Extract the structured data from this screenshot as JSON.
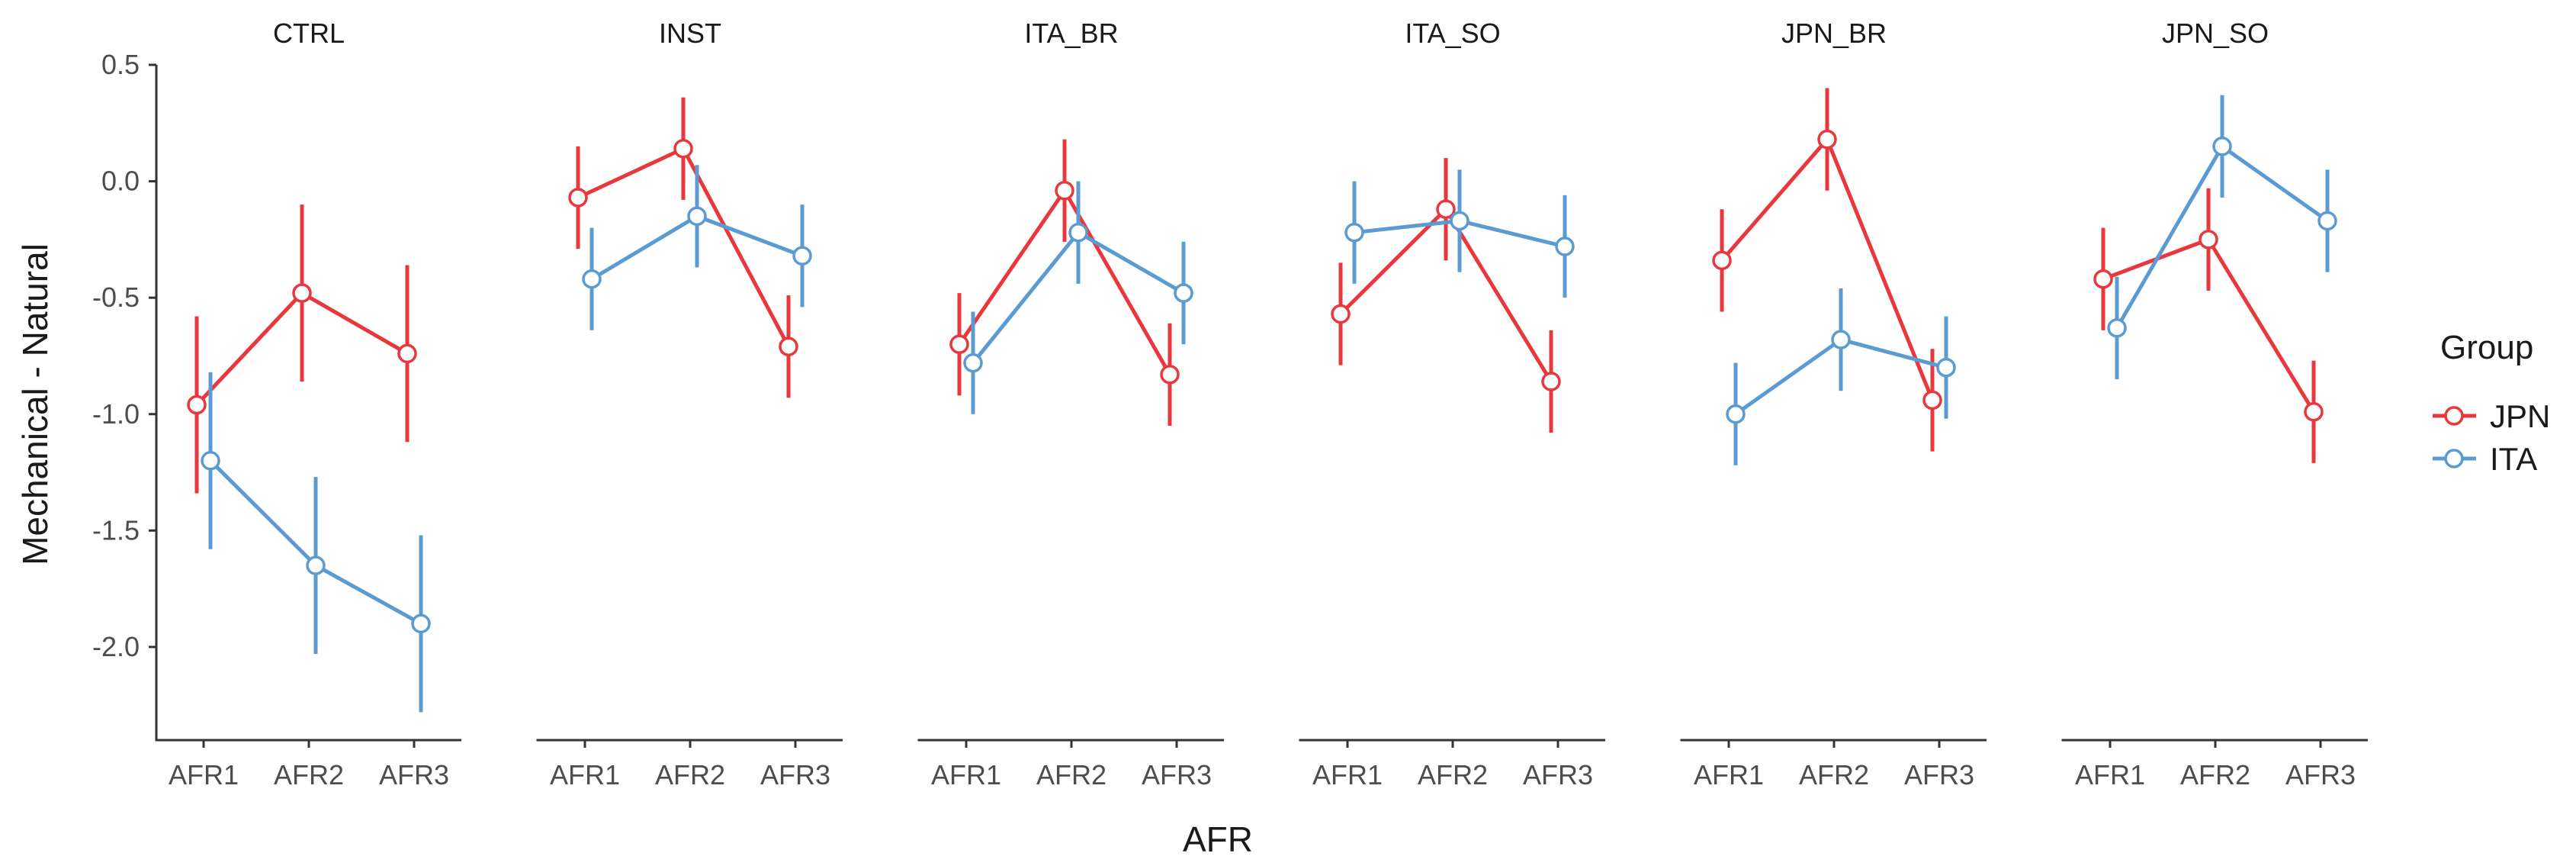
{
  "chart_data": {
    "type": "line",
    "xlabel": "AFR",
    "ylabel": "Mechanical - Natural",
    "ylim": [
      -2.4,
      0.5
    ],
    "yticks": [
      0.5,
      0.0,
      -0.5,
      -1.0,
      -1.5,
      -2.0
    ],
    "ytick_labels": [
      "0.5",
      "0.0",
      "-0.5",
      "-1.0",
      "-1.5",
      "-2.0"
    ],
    "categories": [
      "AFR1",
      "AFR2",
      "AFR3"
    ],
    "legend": {
      "title": "Group",
      "position": "right",
      "entries": [
        "JPN",
        "ITA"
      ]
    },
    "colors": {
      "JPN": "#e8383d",
      "ITA": "#5b9bd1"
    },
    "panels": [
      {
        "name": "CTRL",
        "series": [
          {
            "name": "JPN",
            "values": [
              -0.96,
              -0.48,
              -0.74
            ],
            "lower": [
              -1.34,
              -0.86,
              -1.12
            ],
            "upper": [
              -0.58,
              -0.1,
              -0.36
            ]
          },
          {
            "name": "ITA",
            "values": [
              -1.2,
              -1.65,
              -1.9
            ],
            "lower": [
              -1.58,
              -2.03,
              -2.28
            ],
            "upper": [
              -0.82,
              -1.27,
              -1.52
            ]
          }
        ]
      },
      {
        "name": "INST",
        "series": [
          {
            "name": "JPN",
            "values": [
              -0.07,
              0.14,
              -0.71
            ],
            "lower": [
              -0.29,
              -0.08,
              -0.93
            ],
            "upper": [
              0.15,
              0.36,
              -0.49
            ]
          },
          {
            "name": "ITA",
            "values": [
              -0.42,
              -0.15,
              -0.32
            ],
            "lower": [
              -0.64,
              -0.37,
              -0.54
            ],
            "upper": [
              -0.2,
              0.07,
              -0.1
            ]
          }
        ]
      },
      {
        "name": "ITA_BR",
        "series": [
          {
            "name": "JPN",
            "values": [
              -0.7,
              -0.04,
              -0.83
            ],
            "lower": [
              -0.92,
              -0.26,
              -1.05
            ],
            "upper": [
              -0.48,
              0.18,
              -0.61
            ]
          },
          {
            "name": "ITA",
            "values": [
              -0.78,
              -0.22,
              -0.48
            ],
            "lower": [
              -1.0,
              -0.44,
              -0.7
            ],
            "upper": [
              -0.56,
              0.0,
              -0.26
            ]
          }
        ]
      },
      {
        "name": "ITA_SO",
        "series": [
          {
            "name": "JPN",
            "values": [
              -0.57,
              -0.12,
              -0.86
            ],
            "lower": [
              -0.79,
              -0.34,
              -1.08
            ],
            "upper": [
              -0.35,
              0.1,
              -0.64
            ]
          },
          {
            "name": "ITA",
            "values": [
              -0.22,
              -0.17,
              -0.28
            ],
            "lower": [
              -0.44,
              -0.39,
              -0.5
            ],
            "upper": [
              0.0,
              0.05,
              -0.06
            ]
          }
        ]
      },
      {
        "name": "JPN_BR",
        "series": [
          {
            "name": "JPN",
            "values": [
              -0.34,
              0.18,
              -0.94
            ],
            "lower": [
              -0.56,
              -0.04,
              -1.16
            ],
            "upper": [
              -0.12,
              0.4,
              -0.72
            ]
          },
          {
            "name": "ITA",
            "values": [
              -1.0,
              -0.68,
              -0.8
            ],
            "lower": [
              -1.22,
              -0.9,
              -1.02
            ],
            "upper": [
              -0.78,
              -0.46,
              -0.58
            ]
          }
        ]
      },
      {
        "name": "JPN_SO",
        "series": [
          {
            "name": "JPN",
            "values": [
              -0.42,
              -0.25,
              -0.99
            ],
            "lower": [
              -0.64,
              -0.47,
              -1.21
            ],
            "upper": [
              -0.2,
              -0.03,
              -0.77
            ]
          },
          {
            "name": "ITA",
            "values": [
              -0.63,
              0.15,
              -0.17
            ],
            "lower": [
              -0.85,
              -0.07,
              -0.39
            ],
            "upper": [
              -0.41,
              0.37,
              0.05
            ]
          }
        ]
      }
    ]
  }
}
